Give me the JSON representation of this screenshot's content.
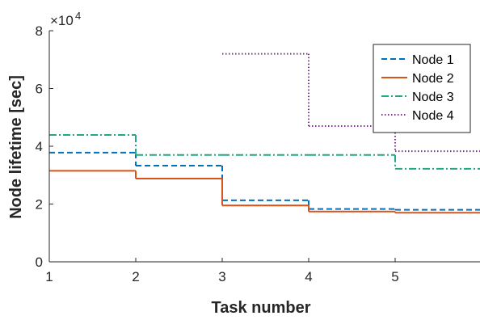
{
  "chart_data": {
    "type": "line",
    "step": true,
    "xlabel": "Task number",
    "ylabel": "Node lifetime [sec]",
    "xlim": [
      1,
      6
    ],
    "ylim": [
      0,
      80000
    ],
    "x_ticks": [
      1,
      2,
      3,
      4,
      5
    ],
    "y_ticks": [
      0,
      20000,
      40000,
      60000,
      80000
    ],
    "y_tick_labels": [
      "0",
      "2",
      "4",
      "6",
      "8"
    ],
    "y_exponent_base": "×10",
    "y_exponent_power": "4",
    "grid": false,
    "legend_position": "top-right",
    "series": [
      {
        "name": "Node 1",
        "color": "#0072BD",
        "dash": "dashed",
        "x": [
          1,
          2,
          3,
          4,
          5,
          6
        ],
        "values": [
          37800,
          33300,
          21300,
          18300,
          18000,
          18000
        ]
      },
      {
        "name": "Node 2",
        "color": "#D95319",
        "dash": "solid",
        "x": [
          1,
          2,
          3,
          4,
          5,
          6
        ],
        "values": [
          31500,
          28800,
          19500,
          17400,
          17000,
          17000
        ]
      },
      {
        "name": "Node 3",
        "color": "#22A884",
        "dash": "dashdot",
        "x": [
          1,
          2,
          3,
          4,
          5,
          6
        ],
        "values": [
          43900,
          37000,
          37000,
          37000,
          32200,
          32200
        ]
      },
      {
        "name": "Node 4",
        "color": "#7E2F8E",
        "dash": "dotted",
        "x": [
          3,
          4,
          5,
          6
        ],
        "values": [
          72000,
          47000,
          38300,
          38300
        ]
      }
    ]
  }
}
